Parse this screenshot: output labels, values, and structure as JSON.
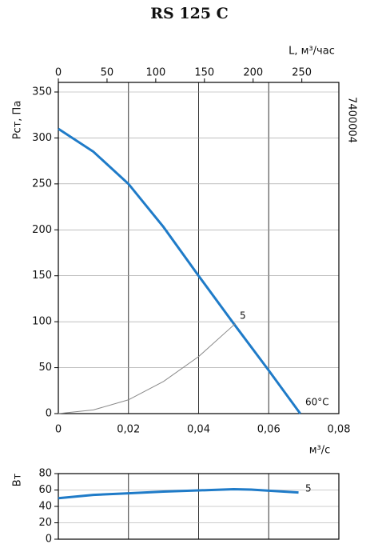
{
  "chart_data": [
    {
      "type": "line",
      "title": "RS 125 C",
      "ylabel": "Pст, Па",
      "xlabel": "м³/с",
      "x2label": "L, м³/час",
      "side_label": "7400004",
      "xlim": [
        0,
        0.08
      ],
      "xticks": [
        0,
        {
          "value": 0.02,
          "label": "0,02"
        },
        {
          "value": 0.04,
          "label": "0,04"
        },
        {
          "value": 0.06,
          "label": "0,06"
        },
        {
          "value": 0.08,
          "label": "0,08"
        }
      ],
      "x2lim": [
        0,
        288
      ],
      "x2ticks": [
        0,
        50,
        100,
        150,
        200,
        250
      ],
      "ylim": [
        0,
        350
      ],
      "yticks": [
        0,
        50,
        100,
        150,
        200,
        250,
        300,
        350
      ],
      "grid": true,
      "series": [
        {
          "color": "#1f7bc8",
          "x": [
            0,
            0.01,
            0.02,
            0.03,
            0.04,
            0.05,
            0.06,
            0.069
          ],
          "values": [
            310,
            285,
            250,
            203,
            150,
            98,
            47,
            0
          ]
        },
        {
          "color": "#888888",
          "x": [
            0,
            0.01,
            0.02,
            0.03,
            0.04,
            0.0505
          ],
          "values": [
            0,
            4,
            15,
            35,
            62,
            98
          ]
        }
      ],
      "annotations": [
        "5",
        "60°C"
      ]
    },
    {
      "type": "line",
      "ylabel": "Вт",
      "xlim": [
        0,
        0.08
      ],
      "ylim": [
        0,
        80
      ],
      "yticks": [
        0,
        20,
        40,
        60,
        80
      ],
      "grid": true,
      "series": [
        {
          "color": "#1f7bc8",
          "x": [
            0,
            0.01,
            0.02,
            0.03,
            0.04,
            0.05,
            0.055,
            0.0685
          ],
          "values": [
            50,
            54,
            56,
            58,
            59.5,
            61,
            60.5,
            57
          ]
        }
      ],
      "annotations": [
        "5"
      ]
    }
  ]
}
